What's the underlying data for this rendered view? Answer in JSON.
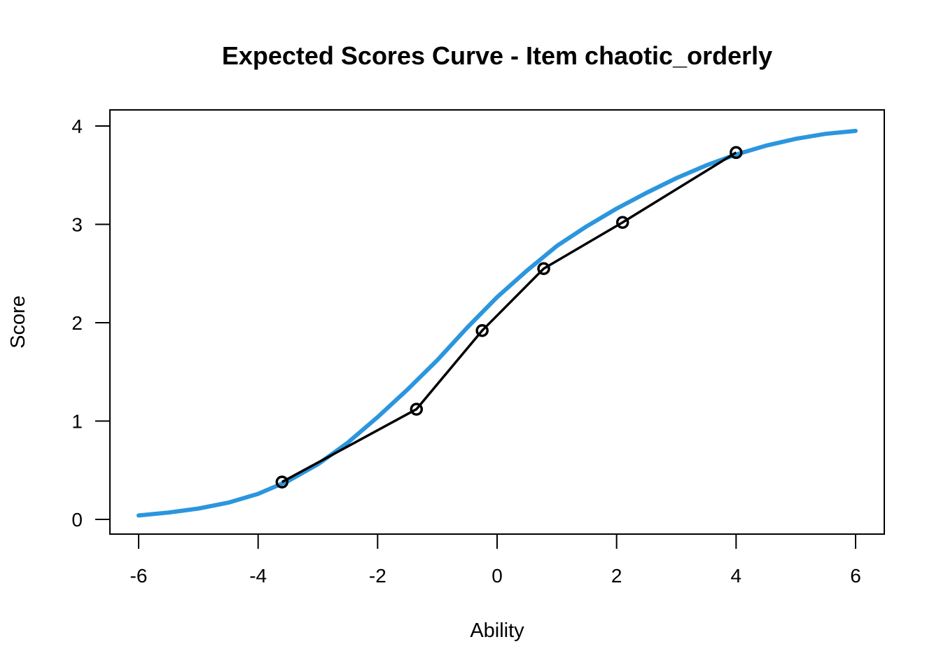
{
  "chart_data": {
    "type": "line",
    "title": "Expected Scores Curve - Item  chaotic_orderly",
    "xlabel": "Ability",
    "ylabel": "Score",
    "xlim": [
      -6,
      6
    ],
    "ylim": [
      0,
      4
    ],
    "x_ticks": [
      "-6",
      "-4",
      "-2",
      "0",
      "2",
      "4",
      "6"
    ],
    "y_ticks": [
      "0",
      "1",
      "2",
      "3",
      "4"
    ],
    "grid": false,
    "legend": "none",
    "series": [
      {
        "role": "expected-curve",
        "color": "#2b96de",
        "x": [
          -6.0,
          -5.5,
          -5.0,
          -4.5,
          -4.0,
          -3.5,
          -3.0,
          -2.5,
          -2.0,
          -1.5,
          -1.0,
          -0.5,
          0.0,
          0.5,
          1.0,
          1.5,
          2.0,
          2.5,
          3.0,
          3.5,
          4.0,
          4.5,
          5.0,
          5.5,
          6.0
        ],
        "values": [
          0.04,
          0.07,
          0.11,
          0.17,
          0.26,
          0.39,
          0.56,
          0.78,
          1.04,
          1.32,
          1.62,
          1.95,
          2.26,
          2.53,
          2.78,
          2.98,
          3.16,
          3.32,
          3.47,
          3.6,
          3.71,
          3.8,
          3.87,
          3.92,
          3.95
        ]
      },
      {
        "role": "observed-points",
        "color": "#000000",
        "x": [
          -3.6,
          -1.35,
          -0.25,
          0.78,
          2.1,
          4.0
        ],
        "values": [
          0.38,
          1.12,
          1.92,
          2.55,
          3.02,
          3.73
        ]
      }
    ]
  }
}
